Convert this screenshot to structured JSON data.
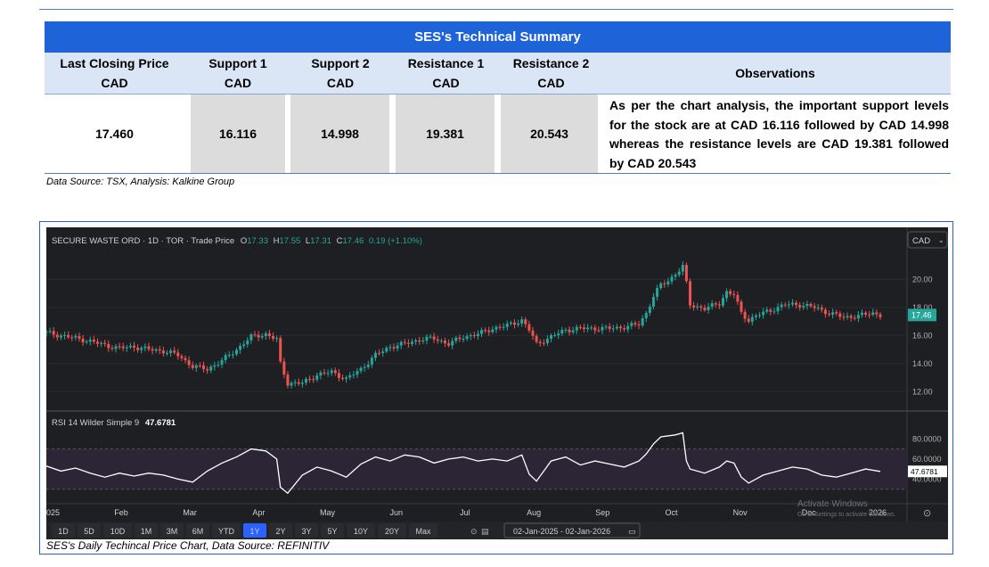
{
  "summary": {
    "title": "SES's Technical Summary",
    "headers": [
      {
        "line1": "Last Closing Price",
        "line2": "CAD"
      },
      {
        "line1": "Support 1",
        "line2": "CAD"
      },
      {
        "line1": "Support 2",
        "line2": "CAD"
      },
      {
        "line1": "Resistance 1",
        "line2": "CAD"
      },
      {
        "line1": "Resistance 2",
        "line2": "CAD"
      },
      {
        "line1": "Observations",
        "line2": ""
      }
    ],
    "values": [
      "17.460",
      "16.116",
      "14.998",
      "19.381",
      "20.543"
    ],
    "observation": "As per the chart analysis, the important support levels for the stock are at CAD 16.116 followed by CAD 14.998 whereas the resistance levels are CAD 19.381 followed by CAD 20.543",
    "source": "Data Source: TSX, Analysis: Kalkine Group"
  },
  "chart_header": {
    "name": "SECURE WASTE ORD · 1D · TOR · Trade Price",
    "o_label": "O",
    "o_value": "17.33",
    "h_label": "H",
    "h_value": "17.55",
    "l_label": "L",
    "l_value": "17.31",
    "c_label": "C",
    "c_value": "17.46",
    "change": "0.19 (+1.10%)",
    "currency": "CAD"
  },
  "rsi_header": {
    "label": "RSI 14 Wilder Simple 9",
    "value": "47.6781"
  },
  "range_buttons": [
    "1D",
    "5D",
    "10D",
    "1M",
    "3M",
    "6M",
    "YTD",
    "1Y",
    "2Y",
    "3Y",
    "5Y",
    "10Y",
    "20Y",
    "Max"
  ],
  "selected_range": "1Y",
  "date_range": "02-Jan-2025 - 02-Jan-2026",
  "watermark": {
    "line1": "Activate Windows",
    "line2": "Go to Settings to activate Windows."
  },
  "chart_source": "SES's Daily Techincal Price Chart, Data Source: REFINITIV",
  "colors": {
    "up": "#26a69a",
    "down": "#ef5350",
    "background": "#1e1f23",
    "accent": "#2962ff",
    "price_tag": "#26a69a"
  },
  "chart_data": [
    {
      "type": "candlestick",
      "title": "SECURE WASTE ORD · 1D · TOR · Trade Price",
      "x_ticks": [
        "025",
        "Feb",
        "Mar",
        "Apr",
        "May",
        "Jun",
        "Jul",
        "Aug",
        "Sep",
        "Oct",
        "Nov",
        "Dec",
        "2026"
      ],
      "y_ticks": [
        "12.00",
        "14.00",
        "16.00",
        "18.00",
        "20.00"
      ],
      "ylim": [
        11.0,
        21.8
      ],
      "last_price": "17.46",
      "close_path": [
        [
          0,
          16.2
        ],
        [
          4,
          16.0
        ],
        [
          8,
          15.8
        ],
        [
          12,
          15.6
        ],
        [
          16,
          15.3
        ],
        [
          20,
          15.1
        ],
        [
          24,
          15.2
        ],
        [
          28,
          15.0
        ],
        [
          32,
          14.9
        ],
        [
          36,
          14.6
        ],
        [
          40,
          13.8
        ],
        [
          44,
          13.6
        ],
        [
          48,
          14.2
        ],
        [
          52,
          15.0
        ],
        [
          56,
          15.9
        ],
        [
          60,
          16.1
        ],
        [
          63,
          15.7
        ],
        [
          64,
          14.0
        ],
        [
          66,
          12.6
        ],
        [
          70,
          12.6
        ],
        [
          74,
          13.2
        ],
        [
          78,
          13.4
        ],
        [
          82,
          12.9
        ],
        [
          86,
          13.6
        ],
        [
          90,
          14.6
        ],
        [
          94,
          15.2
        ],
        [
          98,
          15.4
        ],
        [
          102,
          15.7
        ],
        [
          106,
          15.8
        ],
        [
          110,
          15.4
        ],
        [
          114,
          15.9
        ],
        [
          118,
          16.1
        ],
        [
          122,
          16.5
        ],
        [
          126,
          16.7
        ],
        [
          130,
          17.1
        ],
        [
          132,
          16.4
        ],
        [
          134,
          15.4
        ],
        [
          138,
          15.9
        ],
        [
          142,
          16.4
        ],
        [
          146,
          16.5
        ],
        [
          150,
          16.5
        ],
        [
          154,
          16.5
        ],
        [
          158,
          16.6
        ],
        [
          162,
          16.8
        ],
        [
          164,
          17.6
        ],
        [
          166,
          18.8
        ],
        [
          168,
          19.6
        ],
        [
          170,
          19.9
        ],
        [
          172,
          20.4
        ],
        [
          174,
          20.9
        ],
        [
          175,
          19.7
        ],
        [
          176,
          18.2
        ],
        [
          180,
          17.9
        ],
        [
          184,
          18.3
        ],
        [
          186,
          19.1
        ],
        [
          188,
          18.9
        ],
        [
          190,
          17.6
        ],
        [
          192,
          17.1
        ],
        [
          194,
          17.4
        ],
        [
          198,
          17.8
        ],
        [
          202,
          18.2
        ],
        [
          206,
          18.2
        ],
        [
          210,
          18.0
        ],
        [
          214,
          17.6
        ],
        [
          218,
          17.3
        ],
        [
          222,
          17.4
        ],
        [
          226,
          17.6
        ],
        [
          228,
          17.46
        ]
      ]
    },
    {
      "type": "line",
      "title": "RSI 14 Wilder Simple 9",
      "y_ticks": [
        "40.0000",
        "60.0000",
        "80.0000"
      ],
      "ylim": [
        20,
        90
      ],
      "last_value": "47.6781",
      "points": [
        [
          0,
          53
        ],
        [
          4,
          48
        ],
        [
          8,
          51
        ],
        [
          12,
          46
        ],
        [
          16,
          42
        ],
        [
          20,
          46
        ],
        [
          24,
          43
        ],
        [
          28,
          46
        ],
        [
          32,
          44
        ],
        [
          36,
          40
        ],
        [
          40,
          37
        ],
        [
          44,
          48
        ],
        [
          48,
          56
        ],
        [
          52,
          62
        ],
        [
          56,
          70
        ],
        [
          60,
          68
        ],
        [
          63,
          60
        ],
        [
          64,
          32
        ],
        [
          66,
          26
        ],
        [
          70,
          44
        ],
        [
          74,
          52
        ],
        [
          78,
          48
        ],
        [
          82,
          42
        ],
        [
          86,
          55
        ],
        [
          90,
          62
        ],
        [
          94,
          58
        ],
        [
          98,
          64
        ],
        [
          102,
          62
        ],
        [
          106,
          56
        ],
        [
          110,
          60
        ],
        [
          114,
          62
        ],
        [
          118,
          58
        ],
        [
          122,
          60
        ],
        [
          126,
          58
        ],
        [
          130,
          64
        ],
        [
          132,
          45
        ],
        [
          134,
          38
        ],
        [
          138,
          58
        ],
        [
          142,
          62
        ],
        [
          146,
          54
        ],
        [
          150,
          58
        ],
        [
          154,
          55
        ],
        [
          158,
          52
        ],
        [
          162,
          58
        ],
        [
          164,
          65
        ],
        [
          166,
          75
        ],
        [
          168,
          82
        ],
        [
          172,
          84
        ],
        [
          174,
          86
        ],
        [
          175,
          58
        ],
        [
          176,
          50
        ],
        [
          180,
          46
        ],
        [
          184,
          52
        ],
        [
          186,
          58
        ],
        [
          188,
          56
        ],
        [
          190,
          42
        ],
        [
          192,
          36
        ],
        [
          196,
          44
        ],
        [
          200,
          48
        ],
        [
          204,
          52
        ],
        [
          208,
          50
        ],
        [
          212,
          44
        ],
        [
          216,
          42
        ],
        [
          220,
          46
        ],
        [
          224,
          50
        ],
        [
          228,
          47.68
        ]
      ]
    }
  ]
}
